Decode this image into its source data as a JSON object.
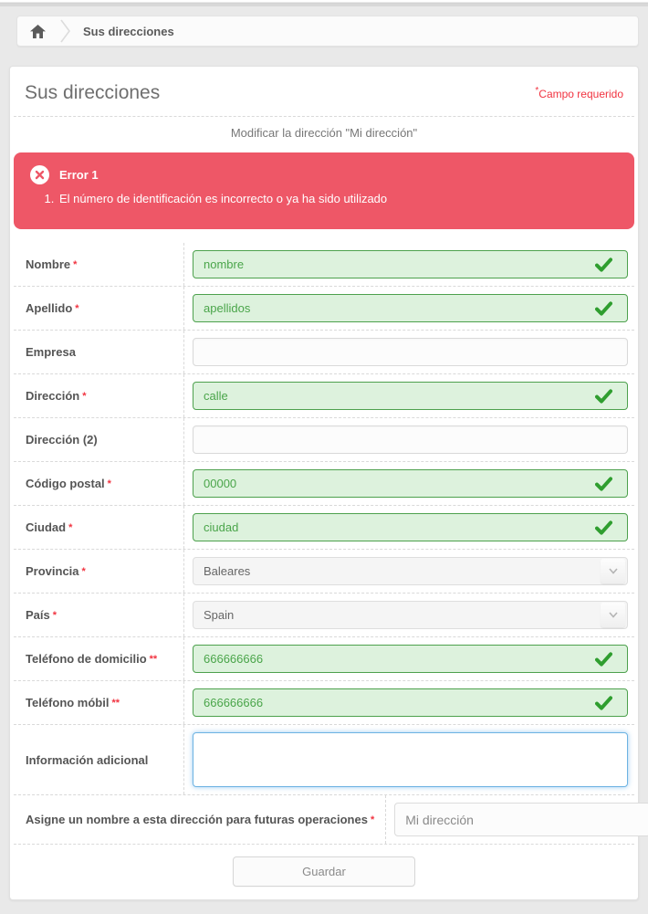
{
  "breadcrumb": {
    "home_icon": "home-icon",
    "items": [
      "Sus direcciones"
    ]
  },
  "panel": {
    "title": "Sus direcciones",
    "required_marker": "*",
    "required_note": "Campo requerido",
    "subtitle": "Modificar la dirección \"Mi dirección\""
  },
  "alert": {
    "icon": "error-x-icon",
    "title": "Error 1",
    "items": [
      "El número de identificación es incorrecto o ya ha sido utilizado"
    ],
    "background": "#ee5767"
  },
  "form": {
    "fields": [
      {
        "key": "nombre",
        "label": "Nombre",
        "required": "*",
        "value": "nombre",
        "kind": "valid"
      },
      {
        "key": "apellido",
        "label": "Apellido",
        "required": "*",
        "value": "apellidos",
        "kind": "valid"
      },
      {
        "key": "empresa",
        "label": "Empresa",
        "required": "",
        "value": "",
        "kind": "neutral"
      },
      {
        "key": "direccion",
        "label": "Dirección",
        "required": "*",
        "value": "calle",
        "kind": "valid"
      },
      {
        "key": "direccion-2",
        "label": "Dirección (2)",
        "required": "",
        "value": "",
        "kind": "neutral"
      },
      {
        "key": "codigo-postal",
        "label": "Código postal",
        "required": "*",
        "value": "00000",
        "kind": "valid"
      },
      {
        "key": "ciudad",
        "label": "Ciudad",
        "required": "*",
        "value": "ciudad",
        "kind": "valid"
      },
      {
        "key": "provincia",
        "label": "Provincia",
        "required": "*",
        "value": "Baleares",
        "kind": "select"
      },
      {
        "key": "pais",
        "label": "País",
        "required": "*",
        "value": "Spain",
        "kind": "select"
      },
      {
        "key": "telefono-domicilio",
        "label": "Teléfono de domicilio",
        "required": "**",
        "value": "666666666",
        "kind": "valid"
      },
      {
        "key": "telefono-movil",
        "label": "Teléfono móbil",
        "required": "**",
        "value": "666666666",
        "kind": "valid"
      },
      {
        "key": "informacion-adicional",
        "label": "Información adicional",
        "required": "",
        "value": "",
        "kind": "textarea"
      },
      {
        "key": "alias",
        "label": "Asigne un nombre a esta dirección para futuras operaciones",
        "required": "*",
        "value": "Mi dirección",
        "kind": "short"
      }
    ],
    "submit_label": "Guardar"
  },
  "colors": {
    "valid_border": "#4da14d",
    "valid_bg": "#ddf2dd",
    "valid_text": "#4aa54a",
    "check": "#2f9e2f",
    "required_red": "#f13340",
    "alert_bg": "#ee5767",
    "focus_blue": "#6db3e2"
  }
}
